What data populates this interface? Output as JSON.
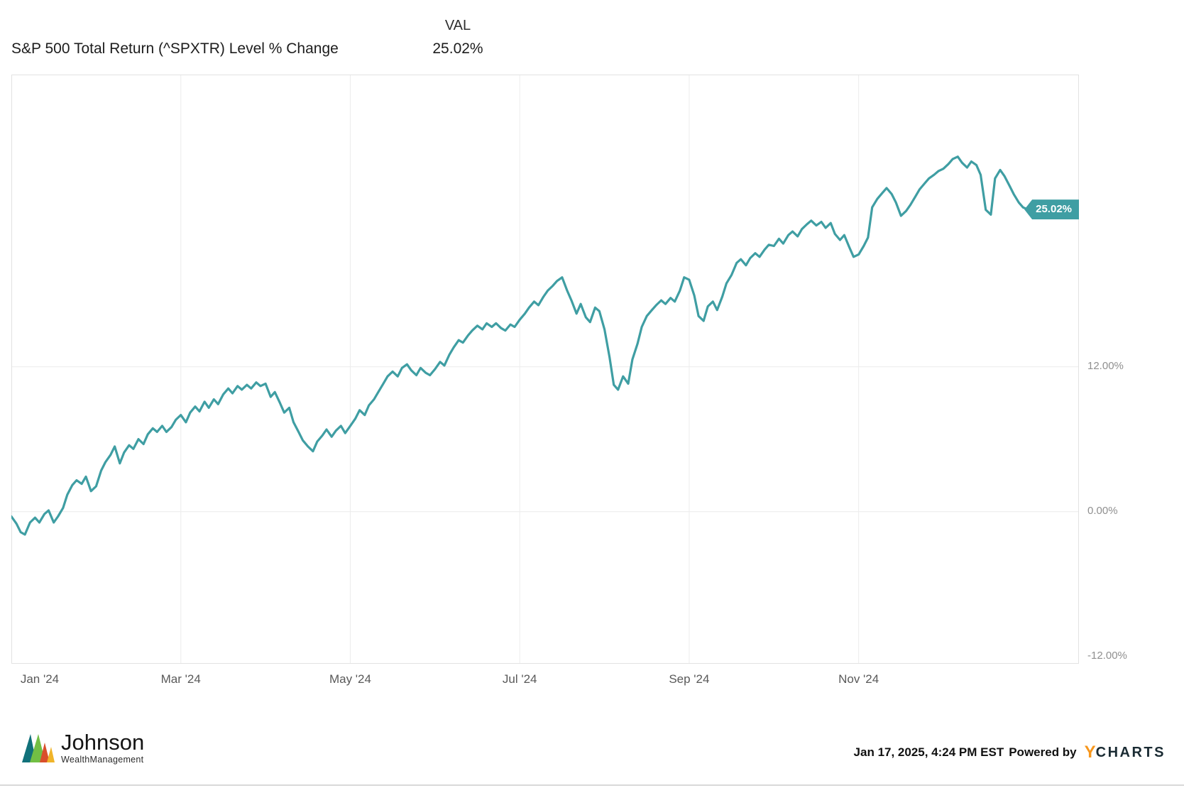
{
  "header": {
    "series_label": "S&P 500 Total Return (^SPXTR) Level % Change",
    "val_column_label": "VAL",
    "val_value": "25.02%"
  },
  "chart_data": {
    "type": "line",
    "title": "S&P 500 Total Return (^SPXTR) Level % Change",
    "unit": "%",
    "legend_position": "none",
    "grid": true,
    "xlim_months": [
      0,
      12.6
    ],
    "ylim": [
      -12.6,
      36.2
    ],
    "x_ticks": [
      {
        "month": 0,
        "label": "Jan '24"
      },
      {
        "month": 2,
        "label": "Mar '24"
      },
      {
        "month": 4,
        "label": "May '24"
      },
      {
        "month": 6,
        "label": "Jul '24"
      },
      {
        "month": 8,
        "label": "Sep '24"
      },
      {
        "month": 10,
        "label": "Nov '24"
      }
    ],
    "y_ticks": [
      {
        "value": 12,
        "label": "12.00%",
        "gridline": true
      },
      {
        "value": 0,
        "label": "0.00%",
        "gridline": true
      },
      {
        "value": -12,
        "label": "-12.00%",
        "gridline": false
      }
    ],
    "end_label": "25.02%",
    "last_value": 25.02,
    "series": [
      {
        "name": "S&P 500 Total Return (^SPXTR) Level % Change",
        "color": "#3F9EA3",
        "points": [
          [
            0.0,
            -0.4
          ],
          [
            0.06,
            -1.0
          ],
          [
            0.11,
            -1.7
          ],
          [
            0.16,
            -1.9
          ],
          [
            0.22,
            -0.9
          ],
          [
            0.28,
            -0.5
          ],
          [
            0.33,
            -0.9
          ],
          [
            0.39,
            -0.2
          ],
          [
            0.44,
            0.1
          ],
          [
            0.5,
            -0.9
          ],
          [
            0.55,
            -0.4
          ],
          [
            0.61,
            0.3
          ],
          [
            0.66,
            1.4
          ],
          [
            0.72,
            2.2
          ],
          [
            0.77,
            2.6
          ],
          [
            0.83,
            2.3
          ],
          [
            0.88,
            2.9
          ],
          [
            0.94,
            1.7
          ],
          [
            1.0,
            2.1
          ],
          [
            1.06,
            3.4
          ],
          [
            1.11,
            4.1
          ],
          [
            1.17,
            4.7
          ],
          [
            1.22,
            5.4
          ],
          [
            1.28,
            4.0
          ],
          [
            1.33,
            4.9
          ],
          [
            1.39,
            5.5
          ],
          [
            1.44,
            5.2
          ],
          [
            1.5,
            6.0
          ],
          [
            1.56,
            5.6
          ],
          [
            1.61,
            6.4
          ],
          [
            1.67,
            6.9
          ],
          [
            1.72,
            6.6
          ],
          [
            1.78,
            7.1
          ],
          [
            1.83,
            6.6
          ],
          [
            1.89,
            7.0
          ],
          [
            1.94,
            7.6
          ],
          [
            2.0,
            8.0
          ],
          [
            2.06,
            7.4
          ],
          [
            2.11,
            8.2
          ],
          [
            2.17,
            8.7
          ],
          [
            2.22,
            8.3
          ],
          [
            2.28,
            9.1
          ],
          [
            2.33,
            8.6
          ],
          [
            2.39,
            9.3
          ],
          [
            2.44,
            8.9
          ],
          [
            2.5,
            9.7
          ],
          [
            2.56,
            10.2
          ],
          [
            2.61,
            9.8
          ],
          [
            2.67,
            10.4
          ],
          [
            2.72,
            10.1
          ],
          [
            2.78,
            10.5
          ],
          [
            2.83,
            10.2
          ],
          [
            2.89,
            10.7
          ],
          [
            2.94,
            10.4
          ],
          [
            3.0,
            10.6
          ],
          [
            3.06,
            9.5
          ],
          [
            3.11,
            9.9
          ],
          [
            3.17,
            9.0
          ],
          [
            3.22,
            8.2
          ],
          [
            3.28,
            8.6
          ],
          [
            3.33,
            7.4
          ],
          [
            3.39,
            6.6
          ],
          [
            3.44,
            5.9
          ],
          [
            3.5,
            5.4
          ],
          [
            3.56,
            5.0
          ],
          [
            3.61,
            5.8
          ],
          [
            3.67,
            6.3
          ],
          [
            3.72,
            6.8
          ],
          [
            3.78,
            6.2
          ],
          [
            3.83,
            6.7
          ],
          [
            3.89,
            7.1
          ],
          [
            3.94,
            6.5
          ],
          [
            4.0,
            7.1
          ],
          [
            4.06,
            7.7
          ],
          [
            4.11,
            8.4
          ],
          [
            4.17,
            8.0
          ],
          [
            4.22,
            8.8
          ],
          [
            4.28,
            9.3
          ],
          [
            4.33,
            9.9
          ],
          [
            4.39,
            10.6
          ],
          [
            4.44,
            11.2
          ],
          [
            4.5,
            11.6
          ],
          [
            4.56,
            11.2
          ],
          [
            4.61,
            11.9
          ],
          [
            4.67,
            12.2
          ],
          [
            4.72,
            11.7
          ],
          [
            4.78,
            11.3
          ],
          [
            4.83,
            11.9
          ],
          [
            4.89,
            11.5
          ],
          [
            4.94,
            11.3
          ],
          [
            5.0,
            11.8
          ],
          [
            5.06,
            12.4
          ],
          [
            5.11,
            12.1
          ],
          [
            5.17,
            13.0
          ],
          [
            5.22,
            13.6
          ],
          [
            5.28,
            14.2
          ],
          [
            5.33,
            14.0
          ],
          [
            5.39,
            14.6
          ],
          [
            5.44,
            15.0
          ],
          [
            5.5,
            15.4
          ],
          [
            5.56,
            15.1
          ],
          [
            5.61,
            15.6
          ],
          [
            5.67,
            15.3
          ],
          [
            5.72,
            15.6
          ],
          [
            5.78,
            15.2
          ],
          [
            5.83,
            15.0
          ],
          [
            5.89,
            15.5
          ],
          [
            5.94,
            15.3
          ],
          [
            6.0,
            15.9
          ],
          [
            6.06,
            16.4
          ],
          [
            6.11,
            16.9
          ],
          [
            6.17,
            17.4
          ],
          [
            6.22,
            17.1
          ],
          [
            6.28,
            17.8
          ],
          [
            6.33,
            18.3
          ],
          [
            6.39,
            18.7
          ],
          [
            6.44,
            19.1
          ],
          [
            6.5,
            19.4
          ],
          [
            6.56,
            18.3
          ],
          [
            6.61,
            17.5
          ],
          [
            6.67,
            16.4
          ],
          [
            6.72,
            17.2
          ],
          [
            6.78,
            16.1
          ],
          [
            6.83,
            15.7
          ],
          [
            6.89,
            16.9
          ],
          [
            6.94,
            16.6
          ],
          [
            7.0,
            15.1
          ],
          [
            7.06,
            12.8
          ],
          [
            7.11,
            10.5
          ],
          [
            7.16,
            10.1
          ],
          [
            7.22,
            11.2
          ],
          [
            7.28,
            10.6
          ],
          [
            7.33,
            12.6
          ],
          [
            7.39,
            13.9
          ],
          [
            7.44,
            15.3
          ],
          [
            7.5,
            16.2
          ],
          [
            7.56,
            16.7
          ],
          [
            7.61,
            17.1
          ],
          [
            7.67,
            17.5
          ],
          [
            7.72,
            17.2
          ],
          [
            7.78,
            17.7
          ],
          [
            7.83,
            17.4
          ],
          [
            7.89,
            18.3
          ],
          [
            7.94,
            19.4
          ],
          [
            8.0,
            19.2
          ],
          [
            8.06,
            17.9
          ],
          [
            8.11,
            16.2
          ],
          [
            8.17,
            15.8
          ],
          [
            8.22,
            17.0
          ],
          [
            8.28,
            17.4
          ],
          [
            8.33,
            16.7
          ],
          [
            8.39,
            17.8
          ],
          [
            8.44,
            18.9
          ],
          [
            8.5,
            19.6
          ],
          [
            8.56,
            20.6
          ],
          [
            8.61,
            20.9
          ],
          [
            8.67,
            20.4
          ],
          [
            8.72,
            21.0
          ],
          [
            8.78,
            21.4
          ],
          [
            8.83,
            21.1
          ],
          [
            8.89,
            21.7
          ],
          [
            8.94,
            22.1
          ],
          [
            9.0,
            22.0
          ],
          [
            9.06,
            22.6
          ],
          [
            9.11,
            22.2
          ],
          [
            9.17,
            22.9
          ],
          [
            9.22,
            23.2
          ],
          [
            9.28,
            22.8
          ],
          [
            9.33,
            23.4
          ],
          [
            9.39,
            23.8
          ],
          [
            9.44,
            24.1
          ],
          [
            9.5,
            23.7
          ],
          [
            9.56,
            24.0
          ],
          [
            9.61,
            23.5
          ],
          [
            9.67,
            23.9
          ],
          [
            9.72,
            23.0
          ],
          [
            9.78,
            22.5
          ],
          [
            9.83,
            22.9
          ],
          [
            9.89,
            21.9
          ],
          [
            9.94,
            21.1
          ],
          [
            10.0,
            21.3
          ],
          [
            10.06,
            22.0
          ],
          [
            10.11,
            22.7
          ],
          [
            10.16,
            25.2
          ],
          [
            10.22,
            25.9
          ],
          [
            10.28,
            26.4
          ],
          [
            10.33,
            26.8
          ],
          [
            10.39,
            26.3
          ],
          [
            10.44,
            25.6
          ],
          [
            10.5,
            24.5
          ],
          [
            10.56,
            24.9
          ],
          [
            10.61,
            25.4
          ],
          [
            10.67,
            26.1
          ],
          [
            10.72,
            26.7
          ],
          [
            10.78,
            27.2
          ],
          [
            10.83,
            27.6
          ],
          [
            10.89,
            27.9
          ],
          [
            10.94,
            28.2
          ],
          [
            11.0,
            28.4
          ],
          [
            11.06,
            28.8
          ],
          [
            11.11,
            29.2
          ],
          [
            11.17,
            29.4
          ],
          [
            11.22,
            28.9
          ],
          [
            11.28,
            28.5
          ],
          [
            11.33,
            29.0
          ],
          [
            11.39,
            28.7
          ],
          [
            11.44,
            27.9
          ],
          [
            11.5,
            25.0
          ],
          [
            11.56,
            24.6
          ],
          [
            11.61,
            27.6
          ],
          [
            11.67,
            28.3
          ],
          [
            11.72,
            27.8
          ],
          [
            11.78,
            27.0
          ],
          [
            11.83,
            26.3
          ],
          [
            11.89,
            25.6
          ],
          [
            11.94,
            25.2
          ],
          [
            12.0,
            25.02
          ]
        ]
      }
    ]
  },
  "footer": {
    "logo_title": "Johnson",
    "logo_subtitle": "WealthManagement",
    "timestamp": "Jan 17, 2025, 4:24 PM EST",
    "powered_by": "Powered by",
    "brand_y": "Y",
    "brand_rest": "CHARTS"
  },
  "colors": {
    "line": "#3F9EA3",
    "end_label_bg": "#3F9EA3",
    "grid": "#ECECEC",
    "border": "#E2E2E2",
    "y_axis_text": "#8F8F8F",
    "x_axis_text": "#595959",
    "ycharts_orange": "#F7971D",
    "ycharts_dark": "#1A2B33"
  }
}
